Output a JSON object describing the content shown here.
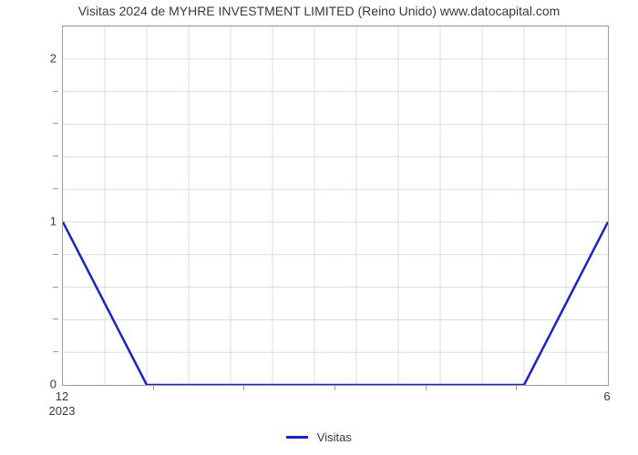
{
  "chart": {
    "type": "line",
    "title": "Visitas 2024 de MYHRE INVESTMENT LIMITED (Reino Unido) www.datocapital.com",
    "title_fontsize": 14,
    "title_color": "#393939",
    "background_color": "#ffffff",
    "plot_border_color": "#9b9b9b",
    "grid_color": "#dcdcdc",
    "x": {
      "min": 0,
      "max": 13,
      "major_ticks": [
        {
          "pos": 0,
          "label": "12",
          "sublabel": "2023"
        },
        {
          "pos": 13,
          "label": "6"
        }
      ],
      "minor_ticks": [
        2.17,
        4.33,
        6.5,
        8.67,
        10.83
      ]
    },
    "y": {
      "min": 0,
      "max": 2.2,
      "major_ticks": [
        {
          "pos": 0,
          "label": "0"
        },
        {
          "pos": 1,
          "label": "1"
        },
        {
          "pos": 2,
          "label": "2"
        }
      ],
      "minor_ticks": [
        0.2,
        0.4,
        0.6,
        0.8,
        1.2,
        1.4,
        1.6,
        1.8
      ]
    },
    "series": {
      "label": "Visitas",
      "color": "#1822c6",
      "line_width": 2.5,
      "points": [
        {
          "x": 0,
          "y": 1.0
        },
        {
          "x": 2,
          "y": 0.0
        },
        {
          "x": 11,
          "y": 0.0
        },
        {
          "x": 13,
          "y": 1.0
        }
      ]
    },
    "legend": {
      "position": "bottom-center",
      "fontsize": 13
    }
  }
}
